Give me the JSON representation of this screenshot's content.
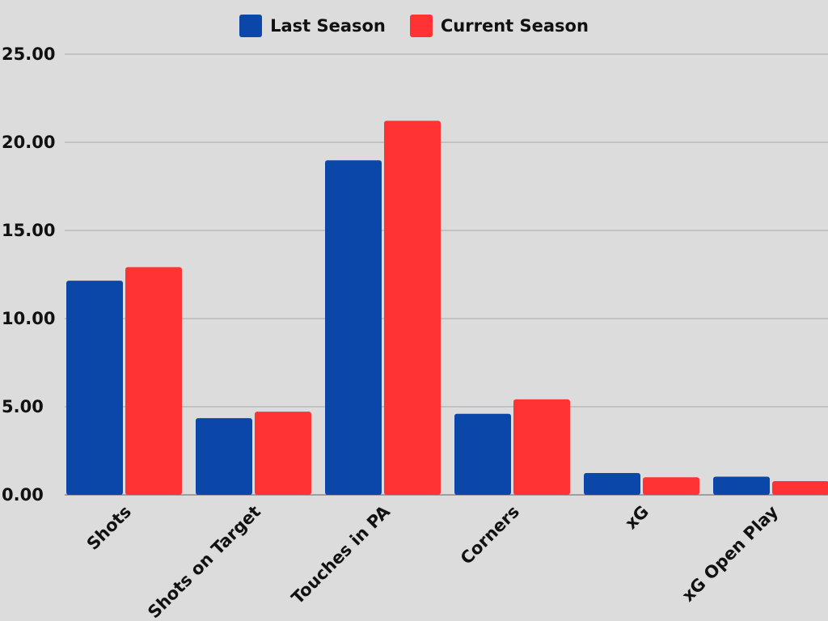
{
  "chart_data": {
    "type": "bar",
    "title": "",
    "xlabel": "",
    "ylabel": "",
    "categories": [
      "Shots",
      "Shots on Target",
      "Touches in PA",
      "Corners",
      "xG",
      "xG Open Play"
    ],
    "series": [
      {
        "name": "Last Season",
        "color": "#0a47a9",
        "values": [
          12.15,
          4.35,
          18.98,
          4.6,
          1.24,
          1.03
        ]
      },
      {
        "name": "Current Season",
        "color": "#ff3333",
        "values": [
          12.92,
          4.72,
          21.22,
          5.42,
          1.0,
          0.78
        ]
      }
    ],
    "ylim": [
      0,
      25
    ],
    "y_ticks": [
      "0.00",
      "5.00",
      "10.00",
      "15.00",
      "20.00",
      "25.00"
    ],
    "grid": true,
    "legend_position": "top"
  }
}
